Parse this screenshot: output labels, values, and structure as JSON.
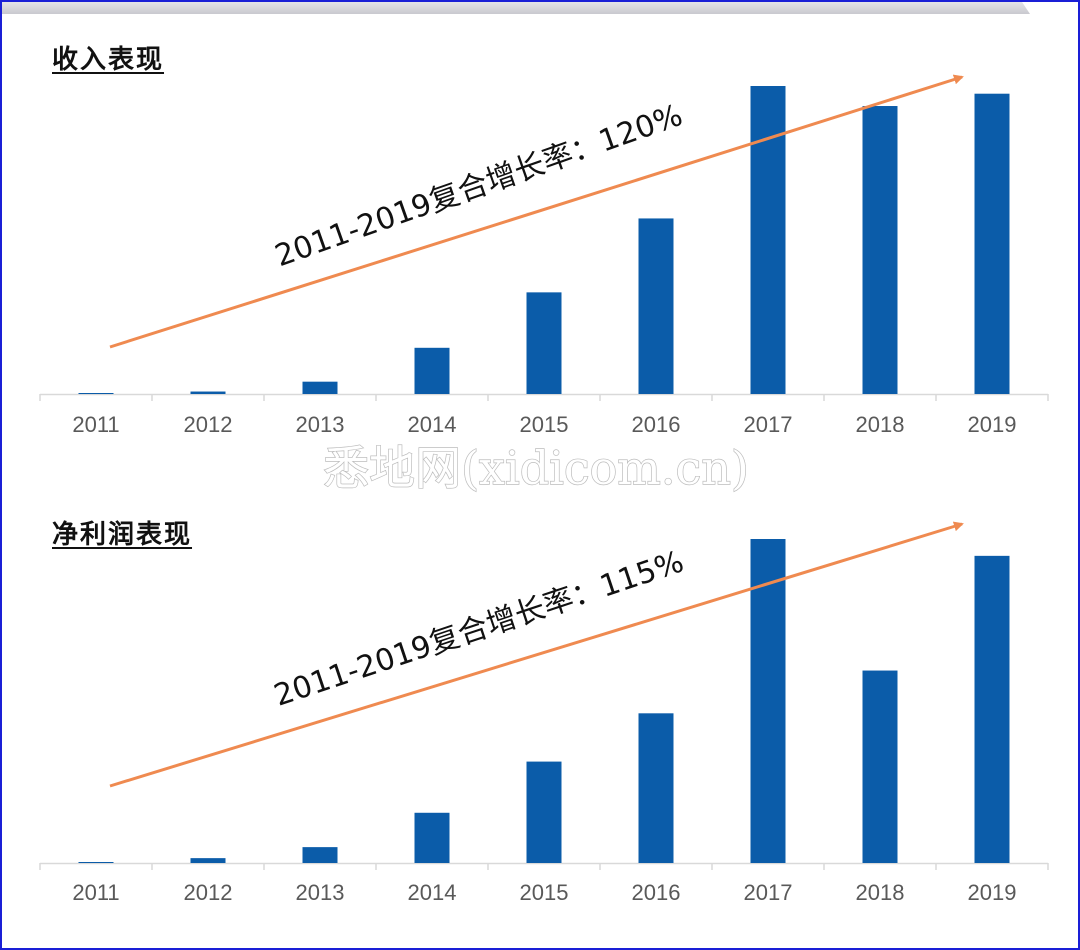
{
  "watermark": "悉地网(xidicom.cn)",
  "colors": {
    "bar": "#0b5ca9",
    "arrow": "#ef8a50",
    "axis": "#d9d9d9",
    "frame": "#1a1fd6"
  },
  "chart_data": [
    {
      "type": "bar",
      "title": "收入表现",
      "categories": [
        "2011",
        "2012",
        "2013",
        "2014",
        "2015",
        "2016",
        "2017",
        "2018",
        "2019"
      ],
      "values": [
        0,
        0.8,
        4,
        15,
        33,
        57,
        100,
        93.5,
        97.5
      ],
      "annotation": {
        "text": "2011-2019复合增长率：120%"
      }
    },
    {
      "type": "bar",
      "title": "净利润表现",
      "categories": [
        "2011",
        "2012",
        "2013",
        "2014",
        "2015",
        "2016",
        "2017",
        "2018",
        "2019"
      ],
      "values": [
        0.2,
        1.5,
        4.9,
        15.5,
        31.3,
        46.2,
        100,
        59.4,
        94.8
      ],
      "annotation": {
        "text": "2011-2019复合增长率：115%"
      }
    }
  ]
}
